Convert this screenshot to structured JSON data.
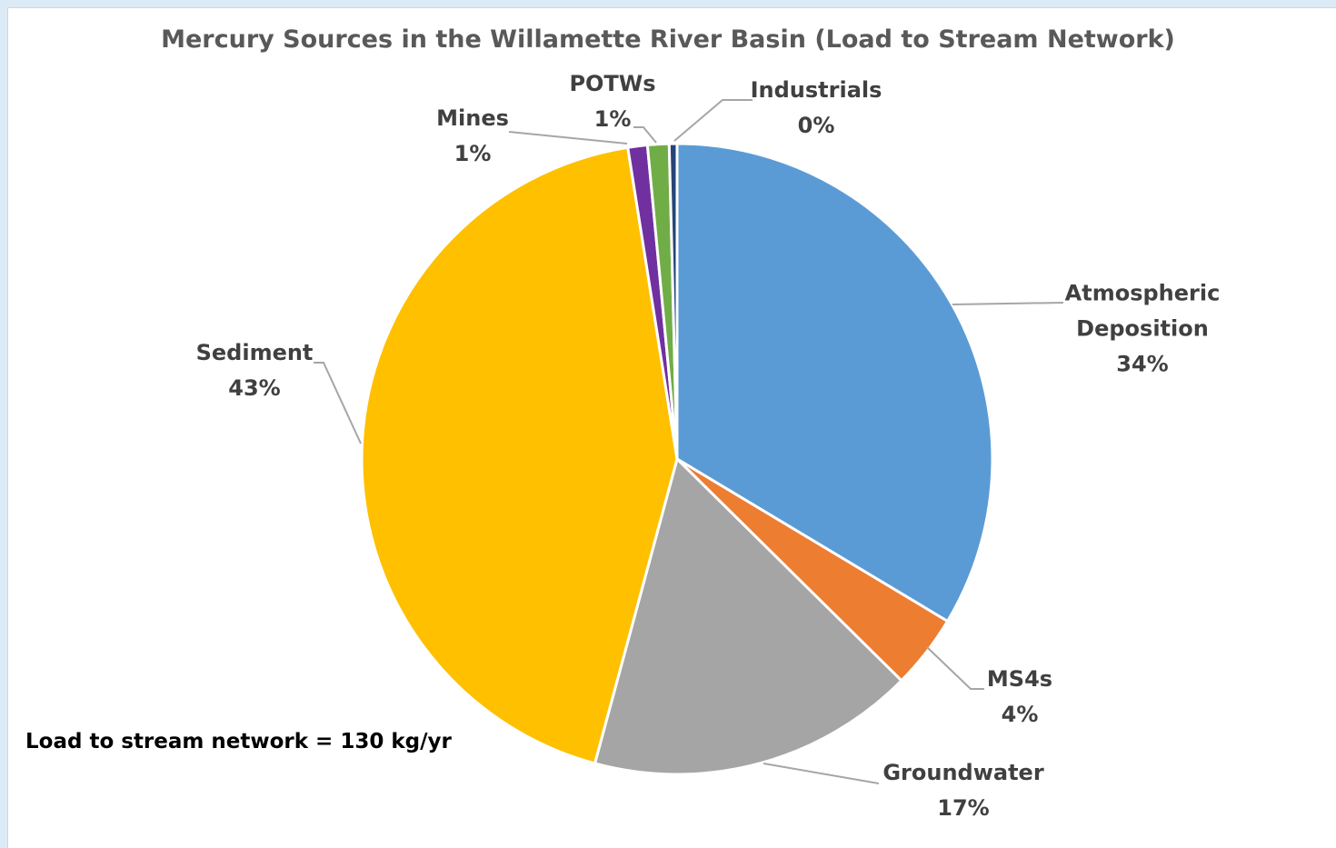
{
  "chart_data": {
    "type": "pie",
    "title": "Mercury Sources in the Willamette River Basin (Load to Stream Network)",
    "categories": [
      "Atmospheric Deposition",
      "MS4s",
      "Groundwater",
      "Sediment",
      "Mines",
      "POTWs",
      "Industrials"
    ],
    "values": [
      33.6,
      3.8,
      16.8,
      43.3,
      1.0,
      1.1,
      0.4
    ],
    "value_labels": [
      "34%",
      "4%",
      "17%",
      "43%",
      "1%",
      "1%",
      "0%"
    ],
    "colors": [
      "#5b9bd5",
      "#ed7d31",
      "#a5a5a5",
      "#ffc000",
      "#7030a0",
      "#70ad47",
      "#264478"
    ],
    "annotation": "Load to stream network = 130 kg/yr"
  }
}
